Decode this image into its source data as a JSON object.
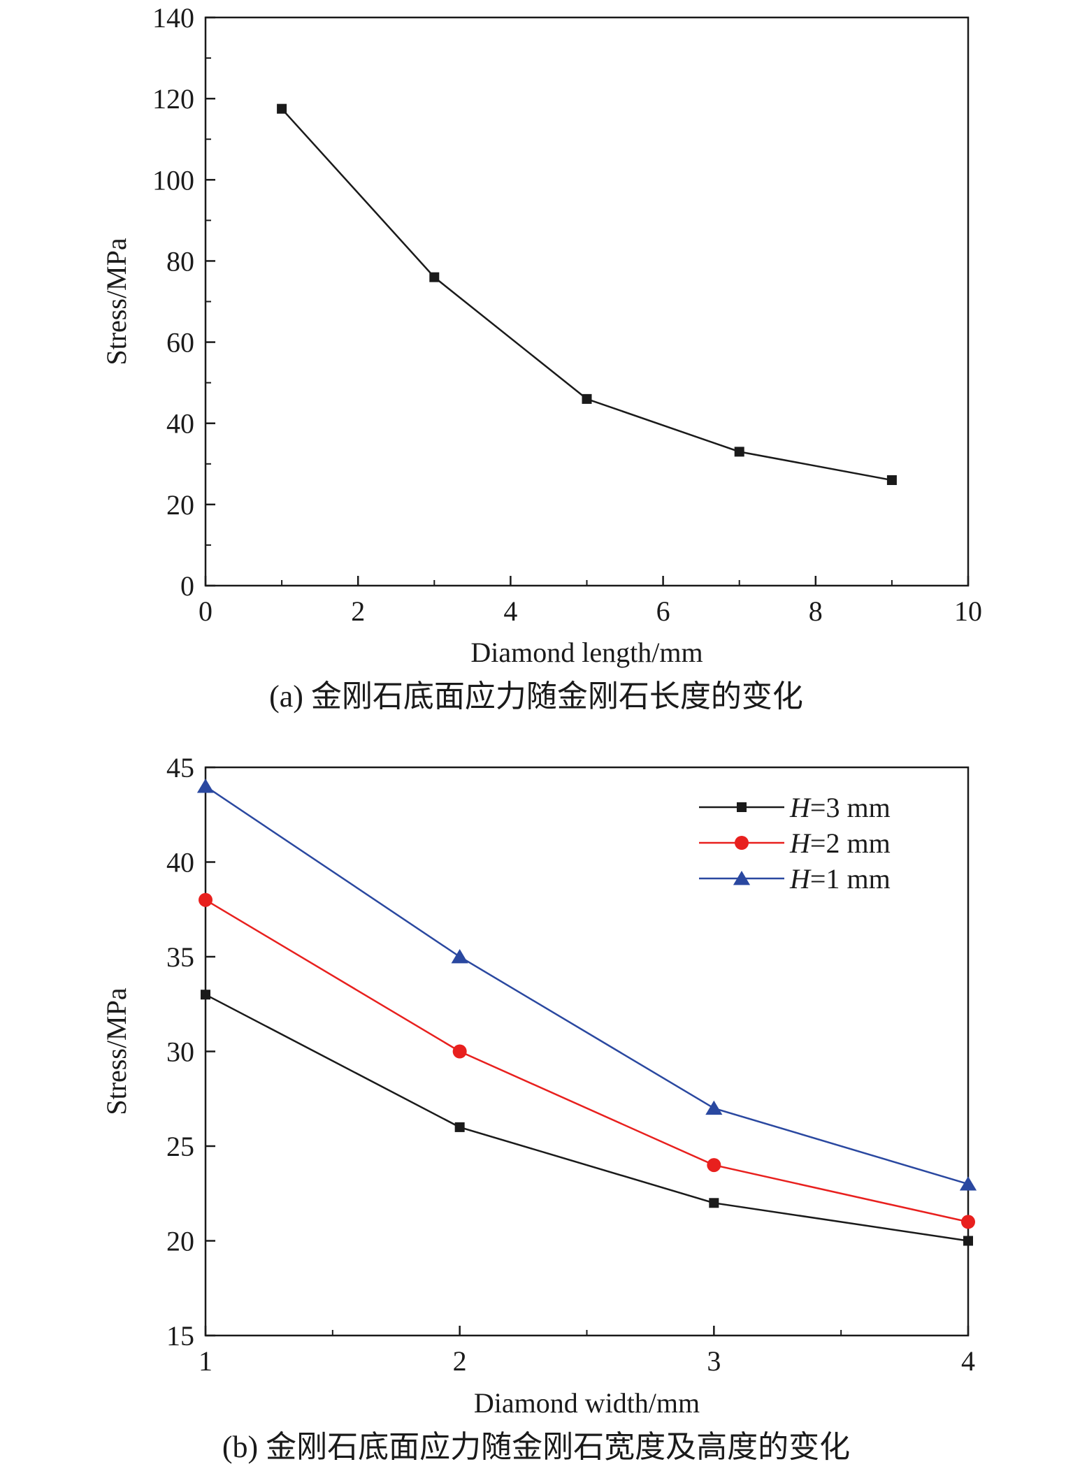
{
  "chart_data": [
    {
      "type": "line",
      "caption": "(a) 金刚石底面应力随金刚石长度的变化",
      "xlabel": "Diamond length/mm",
      "ylabel": "Stress/MPa",
      "xlim": [
        0,
        10
      ],
      "ylim": [
        0,
        140
      ],
      "xticks": [
        0,
        2,
        4,
        6,
        8,
        10
      ],
      "yticks": [
        0,
        20,
        40,
        60,
        80,
        100,
        120,
        140
      ],
      "grid": false,
      "series": [
        {
          "color": "#1a1a1a",
          "marker": "square",
          "x": [
            1,
            3,
            5,
            7,
            9
          ],
          "y": [
            117.5,
            76,
            46,
            33,
            26
          ]
        }
      ]
    },
    {
      "type": "line",
      "caption": "(b) 金刚石底面应力随金刚石宽度及高度的变化",
      "xlabel": "Diamond width/mm",
      "ylabel": "Stress/MPa",
      "xlim": [
        1,
        4
      ],
      "ylim": [
        15,
        45
      ],
      "xticks": [
        1,
        2,
        3,
        4
      ],
      "yticks": [
        15,
        20,
        25,
        30,
        35,
        40,
        45
      ],
      "grid": false,
      "legend_position": "top-right",
      "series": [
        {
          "name": "H=3 mm",
          "color": "#1a1a1a",
          "marker": "square",
          "x": [
            1,
            2,
            3,
            4
          ],
          "y": [
            33,
            26,
            22,
            20
          ]
        },
        {
          "name": "H=2 mm",
          "color": "#e8201e",
          "marker": "circle",
          "x": [
            1,
            2,
            3,
            4
          ],
          "y": [
            38,
            30,
            24,
            21
          ]
        },
        {
          "name": "H=1 mm",
          "color": "#2a48a0",
          "marker": "triangle",
          "x": [
            1,
            2,
            3,
            4
          ],
          "y": [
            44,
            35,
            27,
            23
          ]
        }
      ]
    }
  ]
}
